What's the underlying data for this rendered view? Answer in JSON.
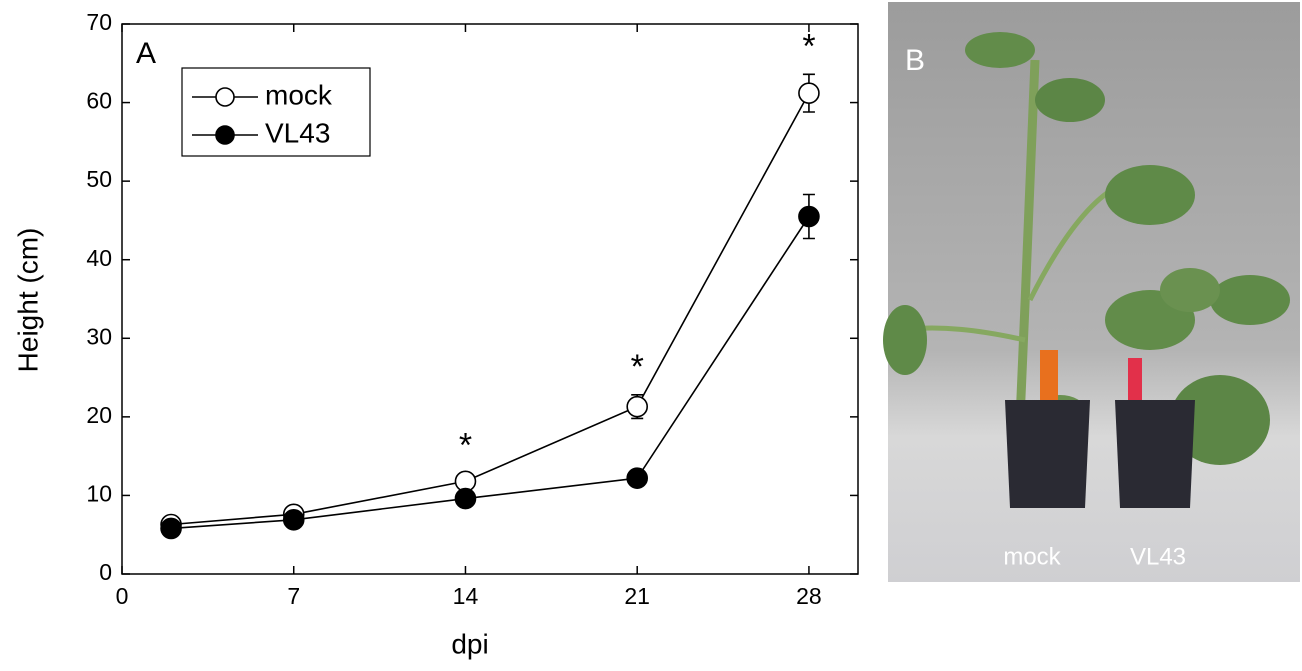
{
  "chart_data": {
    "type": "line",
    "panel_label": "A",
    "x_label": "dpi",
    "y_label": "Height (cm)",
    "x": [
      2,
      7,
      14,
      21,
      28
    ],
    "series": [
      {
        "name": "mock",
        "color": "#000000",
        "fill": "#ffffff",
        "values": [
          6.3,
          7.6,
          11.8,
          21.3,
          61.2
        ],
        "errors": [
          1.0,
          0.8,
          1.0,
          1.5,
          2.4
        ]
      },
      {
        "name": "VL43",
        "color": "#000000",
        "fill": "#000000",
        "values": [
          5.8,
          6.9,
          9.6,
          12.2,
          45.5
        ],
        "errors": [
          0.5,
          0.5,
          0.5,
          0.5,
          2.8
        ]
      }
    ],
    "annotations": [
      {
        "text": "*",
        "x": 14
      },
      {
        "text": "*",
        "x": 21
      },
      {
        "text": "*",
        "x": 28
      }
    ],
    "xlim": [
      0,
      30
    ],
    "xticks": [
      0,
      7,
      14,
      21,
      28
    ],
    "ylim": [
      0,
      70
    ],
    "yticks": [
      0,
      10,
      20,
      30,
      40,
      50,
      60,
      70
    ],
    "legend": "upper left"
  },
  "photo": {
    "label": "B",
    "captions": [
      "mock",
      "VL43"
    ]
  }
}
